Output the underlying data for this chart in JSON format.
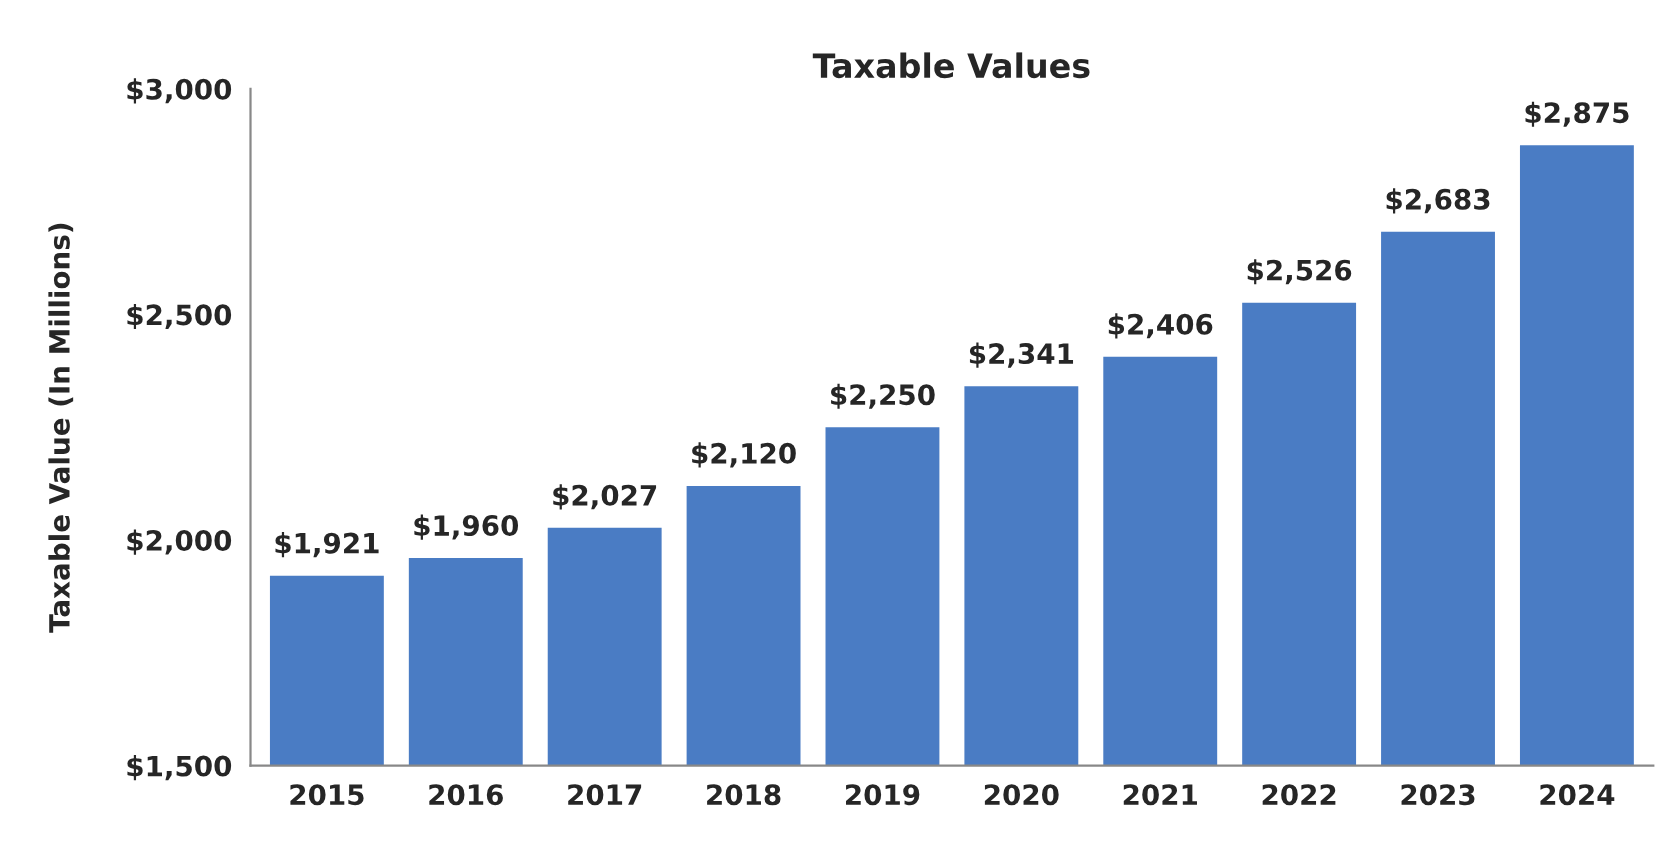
{
  "chart_data": {
    "type": "bar",
    "title": "Taxable Values",
    "ylabel": "Taxable Value (In Millions)",
    "categories": [
      "2015",
      "2016",
      "2017",
      "2018",
      "2019",
      "2020",
      "2021",
      "2022",
      "2023",
      "2024"
    ],
    "values": [
      1921,
      1960,
      2027,
      2120,
      2250,
      2341,
      2406,
      2526,
      2683,
      2875
    ],
    "value_labels": [
      "$1,921",
      "$1,960",
      "$2,027",
      "$2,120",
      "$2,250",
      "$2,341",
      "$2,406",
      "$2,526",
      "$2,683",
      "$2,875"
    ],
    "color": "#4a7cc4",
    "ylim": [
      1500,
      3000
    ],
    "yticks": [
      {
        "value": 1500,
        "label": "$1,500"
      },
      {
        "value": 2000,
        "label": "$2,000"
      },
      {
        "value": 2500,
        "label": "$2,500"
      },
      {
        "value": 3000,
        "label": "$3,000"
      }
    ],
    "grid": false
  }
}
